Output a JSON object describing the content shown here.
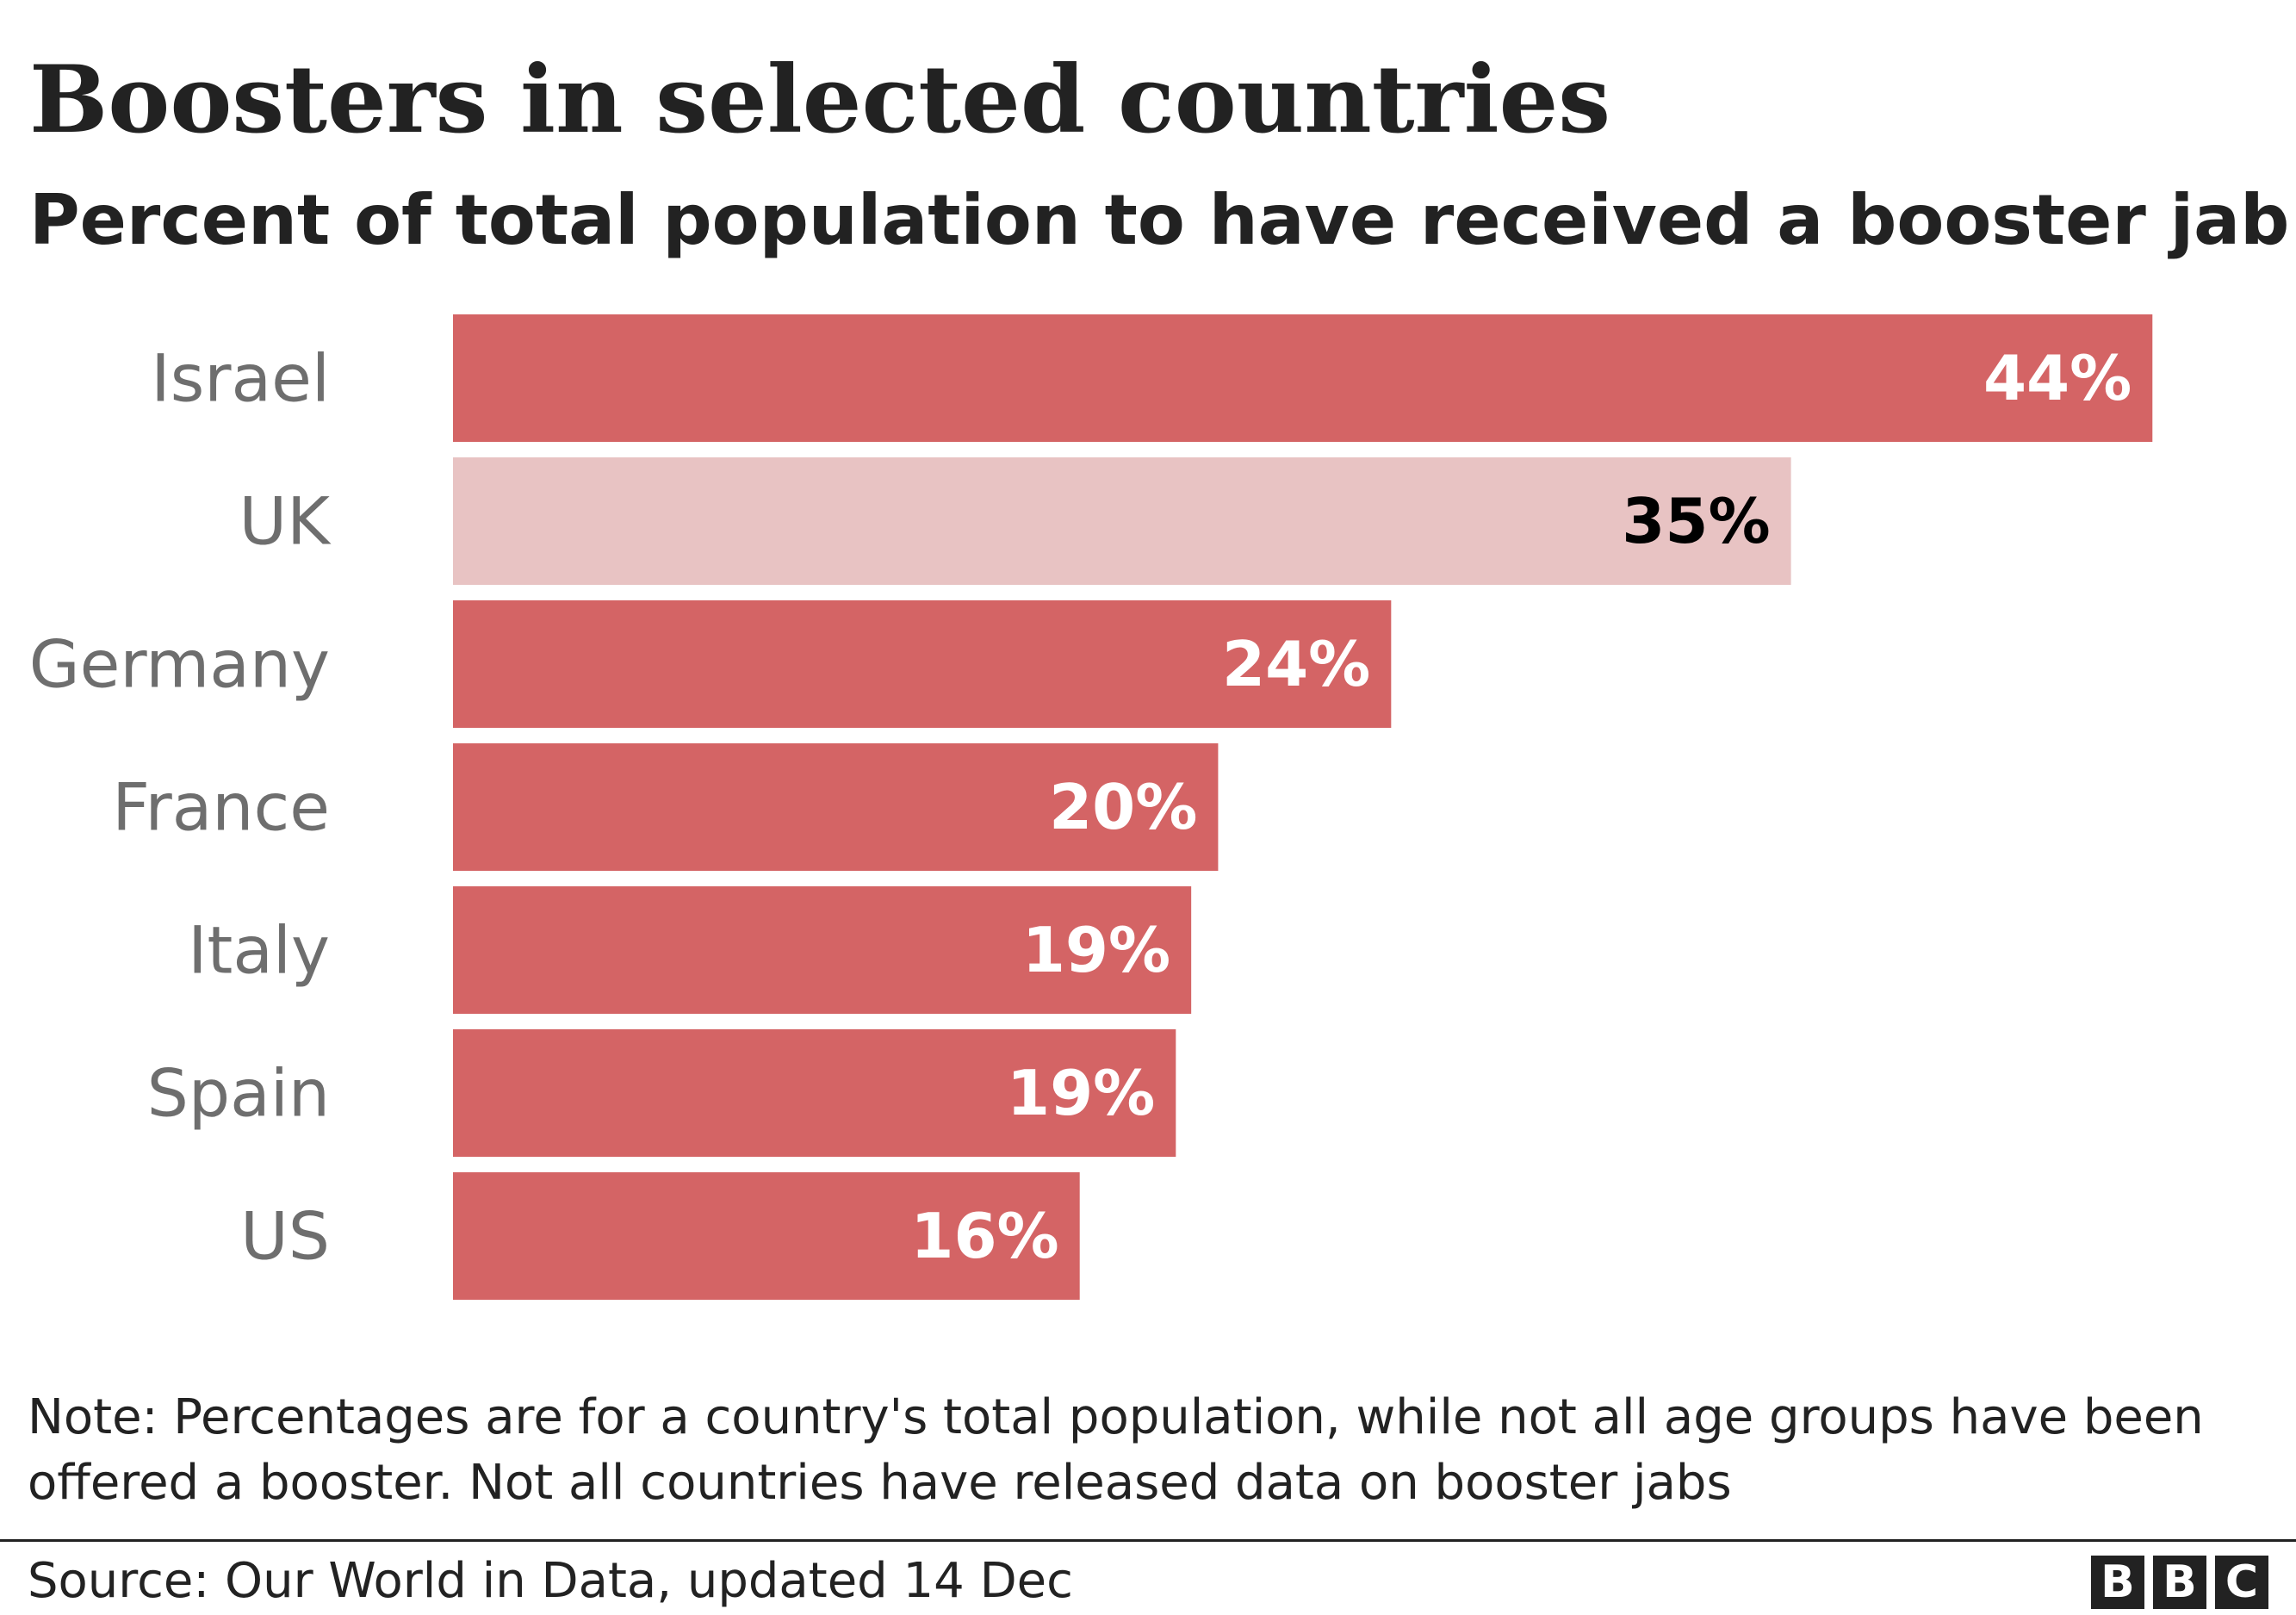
{
  "chart_data": {
    "type": "bar",
    "orientation": "horizontal",
    "title": "Boosters in selected countries",
    "subtitle": "Percent of total population to have received a booster jab",
    "categories": [
      "Israel",
      "UK",
      "Germany",
      "France",
      "Italy",
      "Spain",
      "US"
    ],
    "values": [
      44.2,
      34.8,
      24.4,
      19.9,
      19.2,
      18.8,
      16.3
    ],
    "value_labels": [
      "44%",
      "35%",
      "24%",
      "20%",
      "19%",
      "19%",
      "16%"
    ],
    "highlight": "UK",
    "xlim": [
      0,
      45
    ],
    "grid": false,
    "legend": "none",
    "colors": {
      "bar": "#d46465",
      "highlight_bar": "#e8c3c3",
      "label_light": "#ffffff",
      "label_dark": "#000000"
    }
  },
  "note": "Note: Percentages are for a country's total population, while not all age groups have been offered a booster. Not all countries have released data on booster jabs",
  "source": "Source: Our World in Data, updated 14 Dec",
  "logo": {
    "letters": [
      "B",
      "B",
      "C"
    ]
  }
}
